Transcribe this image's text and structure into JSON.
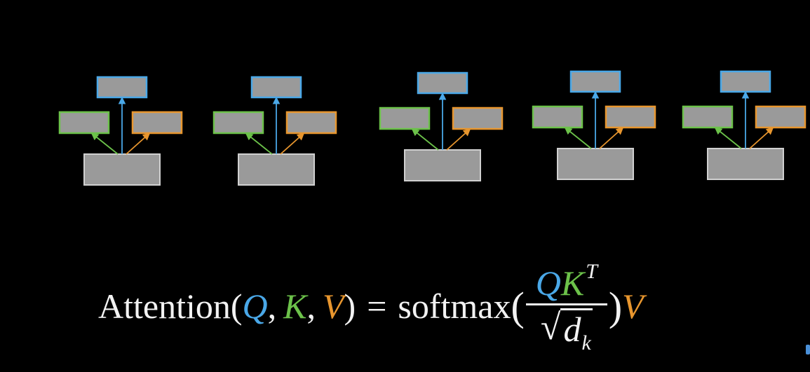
{
  "colors": {
    "background": "#000000",
    "node_fill": "#9a9a9a",
    "node_border": "#d0d0d0",
    "query": "#4aa8e8",
    "key": "#6cc24a",
    "value": "#e8962e",
    "text": "#f2f2f2"
  },
  "diagram": {
    "units": [
      {
        "id": 1
      },
      {
        "id": 2
      },
      {
        "id": 3
      },
      {
        "id": 4
      },
      {
        "id": 5
      }
    ]
  },
  "formula": {
    "name": "Attention",
    "open_paren": "(",
    "q": "Q",
    "comma1": ",",
    "k": "K",
    "comma2": ",",
    "v": "V",
    "close_paren": ")",
    "equals": "=",
    "softmax": "softmax",
    "big_open": "(",
    "num_q": "Q",
    "num_k": "K",
    "num_sup": "T",
    "sqrt_symbol": "√",
    "den_d": "d",
    "den_sub": "k",
    "big_close": ")",
    "trailing_v": "V"
  }
}
